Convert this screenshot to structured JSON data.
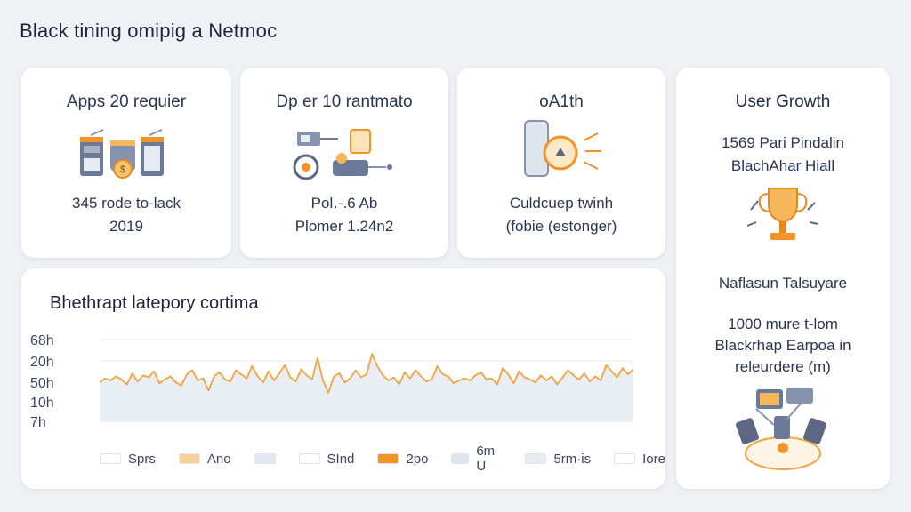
{
  "header": {
    "title": "Black tining omipig  a Netmoc"
  },
  "stats": [
    {
      "title": "Apps 20 requier",
      "line1": "345 rode to-lack",
      "line2": "2019"
    },
    {
      "title": "Dp er 10 rantmato",
      "line1": "Pol․-.6 Ab",
      "line2": "Plomer 1.24n2"
    },
    {
      "title": "oA1th",
      "line1": "Culdcuep twinh",
      "line2": "(fobie (estonger)"
    }
  ],
  "user_growth": {
    "title": "User Growth",
    "line1": "1569 Pari Pindalin",
    "line2": "BlachAhar Hiall",
    "line3": "Naflasun Talsuyare",
    "line4": "1000 mure t-lom",
    "line5": "Blackrhap Earpoa in",
    "line6": "releurdere (m)"
  },
  "chart_section": {
    "title": "Bhethrapt latepory cortima"
  },
  "chart_data": {
    "type": "line",
    "title": "Bhethrapt latepory cortima",
    "y_tick_labels": [
      "68h",
      "20h",
      "50h",
      "10h",
      "7h"
    ],
    "series": [
      {
        "color": "#f3a340",
        "values": [
          38,
          42,
          40,
          44,
          41,
          36,
          47,
          39,
          45,
          43,
          49,
          37,
          41,
          44,
          38,
          35,
          46,
          50,
          40,
          42,
          30,
          44,
          48,
          41,
          39,
          50,
          46,
          42,
          54,
          44,
          38,
          49,
          40,
          47,
          55,
          43,
          39,
          51,
          45,
          41,
          62,
          40,
          28,
          44,
          47,
          38,
          42,
          50,
          43,
          46,
          66,
          54,
          45,
          40,
          43,
          36,
          48,
          42,
          50,
          44,
          39,
          41,
          54,
          46,
          44,
          37,
          40,
          42,
          40,
          45,
          48,
          41,
          42,
          36,
          52,
          46,
          37,
          49,
          43,
          41,
          38,
          45,
          40,
          44,
          36,
          43,
          50,
          45,
          41,
          47,
          39,
          44,
          40,
          55,
          49,
          43,
          52,
          46,
          51
        ]
      }
    ],
    "legend": [
      {
        "label": "Sprs",
        "color": "#ffffff"
      },
      {
        "label": "Ano",
        "color": "#f8cf97"
      },
      {
        "label": "",
        "color": "#e2e6ee"
      },
      {
        "label": "SInd",
        "color": "#ffffff"
      },
      {
        "label": "2po",
        "color": "#f39327"
      },
      {
        "label": "6m U",
        "color": "#dee4ee"
      },
      {
        "label": "5rm·is",
        "color": "#e8ebf2"
      },
      {
        "label": "Iore",
        "color": "#ffffff"
      }
    ],
    "grid": true,
    "legend_position": "bottom"
  },
  "icons": {
    "stat1": "server-cans-icon",
    "stat2": "machinery-icon",
    "stat3": "phone-sun-icon",
    "trophy": "trophy-icon",
    "network": "network-devices-icon"
  }
}
